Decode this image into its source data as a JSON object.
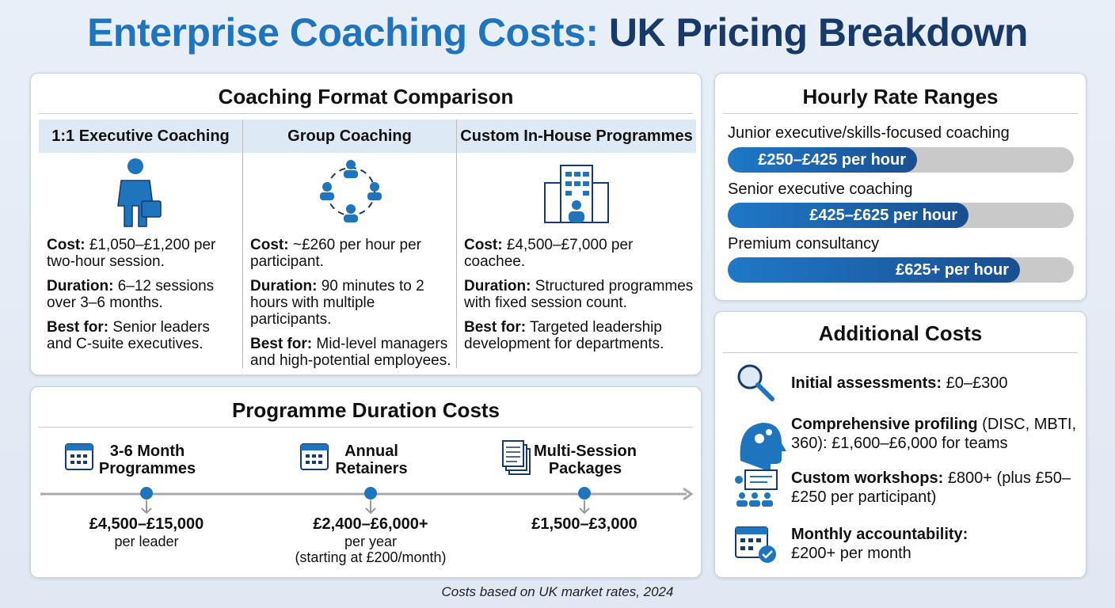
{
  "title": {
    "part1": "Enterprise Coaching Costs:",
    "part2": "UK Pricing Breakdown"
  },
  "formats": {
    "title": "Coaching Format Comparison",
    "columns": [
      {
        "header": "1:1 Executive Coaching",
        "items": [
          {
            "label": "Cost:",
            "text": "£1,050–£1,200 per two-hour session."
          },
          {
            "label": "Duration:",
            "text": "6–12 sessions over 3–6 months."
          },
          {
            "label": "Best for:",
            "text": "Senior leaders and C-suite executives."
          }
        ]
      },
      {
        "header": "Group Coaching",
        "items": [
          {
            "label": "Cost:",
            "text": "~£260 per hour per participant."
          },
          {
            "label": "Duration:",
            "text": "90 minutes to 2 hours with multiple participants."
          },
          {
            "label": "Best for:",
            "text": "Mid-level managers and high-potential employees."
          }
        ]
      },
      {
        "header": "Custom In-House Programmes",
        "items": [
          {
            "label": "Cost:",
            "text": "£4,500–£7,000 per coachee."
          },
          {
            "label": "Duration:",
            "text": "Structured programmes with fixed session count."
          },
          {
            "label": "Best for:",
            "text": "Targeted leadership development for departments."
          }
        ]
      }
    ]
  },
  "hourly": {
    "title": "Hourly Rate Ranges",
    "rates": [
      {
        "name": "Junior executive/skills-focused coaching",
        "range": "£250–£425 per hour"
      },
      {
        "name": "Senior executive coaching",
        "range": "£425–£625 per hour"
      },
      {
        "name": "Premium consultancy",
        "range": "£625+ per hour"
      }
    ]
  },
  "duration": {
    "title": "Programme Duration Costs",
    "items": [
      {
        "label": "3-6 Month Programmes",
        "price": "£4,500–£15,000",
        "note": [
          "per leader"
        ]
      },
      {
        "label": "Annual Retainers",
        "price": "£2,400–£6,000+",
        "note": [
          "per year",
          "(starting at £200/month)"
        ]
      },
      {
        "label": "Multi-Session Packages",
        "price": "£1,500–£3,000",
        "note": []
      }
    ]
  },
  "additional": {
    "title": "Additional Costs",
    "items": [
      {
        "label": "Initial assessments:",
        "text": "£0–£300"
      },
      {
        "label": "Comprehensive profiling",
        "text": "(DISC, MBTI, 360): £1,600–£6,000 for teams"
      },
      {
        "label": "Custom workshops:",
        "text": "£800+ (plus £50–£250 per participant)"
      },
      {
        "label": "Monthly accountability:",
        "text": "£200+ per month"
      }
    ]
  },
  "footer": "Costs based on UK market rates, 2024"
}
